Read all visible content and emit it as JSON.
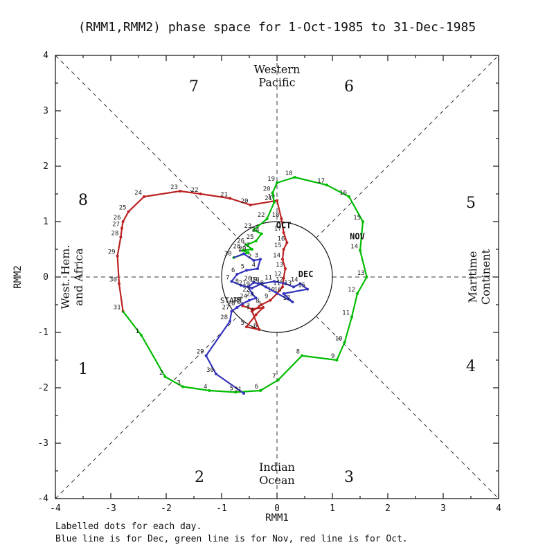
{
  "title": "(RMM1,RMM2) phase space for  1-Oct-1985 to 31-Dec-1985",
  "footer": {
    "line1": "Labelled dots for each day.",
    "line2": "Blue line is for Dec, green line is for Nov, red line is for Oct."
  },
  "chart_data": {
    "type": "line",
    "title": "(RMM1,RMM2) phase space for  1-Oct-1985 to 31-Dec-1985",
    "xlabel": "RMM1",
    "ylabel": "RMM2",
    "xlim": [
      -4,
      4
    ],
    "ylim": [
      -4,
      4
    ],
    "ticks": [
      -4,
      -3,
      -2,
      -1,
      0,
      1,
      2,
      3,
      4
    ],
    "grid": "dashed-octant-guides",
    "unit_circle_radius": 1,
    "octant_labels": [
      {
        "n": "7",
        "pos": [
          -1.5,
          3.45
        ]
      },
      {
        "n": "6",
        "pos": [
          1.3,
          3.45
        ]
      },
      {
        "n": "8",
        "pos": [
          -3.5,
          1.4
        ]
      },
      {
        "n": "5",
        "pos": [
          3.5,
          1.35
        ]
      },
      {
        "n": "1",
        "pos": [
          -3.5,
          -1.65
        ]
      },
      {
        "n": "4",
        "pos": [
          3.5,
          -1.6
        ]
      },
      {
        "n": "2",
        "pos": [
          -1.4,
          -3.6
        ]
      },
      {
        "n": "3",
        "pos": [
          1.3,
          -3.6
        ]
      }
    ],
    "region_labels": [
      {
        "lines": [
          "Western",
          "Pacific"
        ],
        "pos": [
          0,
          3.68
        ],
        "rotate": 0
      },
      {
        "lines": [
          "Indian",
          "Ocean"
        ],
        "pos": [
          0,
          -3.5
        ],
        "rotate": 0
      },
      {
        "lines": [
          "West. Hem.",
          "and Africa"
        ],
        "pos": [
          -3.75,
          0
        ],
        "rotate": -90
      },
      {
        "lines": [
          "Maritime",
          "Continent"
        ],
        "pos": [
          3.6,
          0
        ],
        "rotate": -90
      }
    ],
    "start_label": {
      "text": "START",
      "pos": [
        -0.82,
        -0.47
      ]
    },
    "series": [
      {
        "name": "Oct",
        "label": "OCT",
        "color": "#bb2222",
        "label_pos": [
          0.12,
          0.88
        ],
        "points": [
          [
            1,
            -0.62,
            -0.52
          ],
          [
            2,
            -0.45,
            -0.58
          ],
          [
            3,
            -0.25,
            -0.55
          ],
          [
            4,
            -0.38,
            -0.68
          ],
          [
            5,
            -0.55,
            -0.9
          ],
          [
            6,
            -0.32,
            -0.95
          ],
          [
            7,
            -0.45,
            -0.62
          ],
          [
            8,
            -0.28,
            -0.5
          ],
          [
            9,
            -0.12,
            -0.42
          ],
          [
            10,
            0.0,
            -0.3
          ],
          [
            11,
            0.1,
            -0.18
          ],
          [
            12,
            0.12,
            -0.02
          ],
          [
            13,
            0.15,
            0.15
          ],
          [
            14,
            0.1,
            0.32
          ],
          [
            15,
            0.12,
            0.5
          ],
          [
            16,
            0.18,
            0.62
          ],
          [
            17,
            0.12,
            0.8
          ],
          [
            18,
            0.08,
            1.05
          ],
          [
            19,
            0.0,
            1.38
          ],
          [
            20,
            -0.48,
            1.3
          ],
          [
            21,
            -0.85,
            1.42
          ],
          [
            22,
            -1.38,
            1.5
          ],
          [
            23,
            -1.75,
            1.55
          ],
          [
            24,
            -2.4,
            1.45
          ],
          [
            25,
            -2.68,
            1.18
          ],
          [
            26,
            -2.78,
            1.0
          ],
          [
            27,
            -2.8,
            0.88
          ],
          [
            28,
            -2.82,
            0.72
          ],
          [
            29,
            -2.88,
            0.38
          ],
          [
            30,
            -2.85,
            -0.12
          ],
          [
            31,
            -2.78,
            -0.62
          ]
        ]
      },
      {
        "name": "Nov",
        "label": "NOV",
        "color": "#00bb00",
        "label_pos": [
          1.45,
          0.68
        ],
        "points": [
          [
            1,
            -2.45,
            -1.05
          ],
          [
            2,
            -2.02,
            -1.8
          ],
          [
            3,
            -1.7,
            -1.98
          ],
          [
            4,
            -1.22,
            -2.05
          ],
          [
            5,
            -0.75,
            -2.08
          ],
          [
            6,
            -0.3,
            -2.05
          ],
          [
            7,
            0.02,
            -1.86
          ],
          [
            8,
            0.45,
            -1.42
          ],
          [
            9,
            1.08,
            -1.5
          ],
          [
            10,
            1.22,
            -1.18
          ],
          [
            11,
            1.35,
            -0.72
          ],
          [
            12,
            1.45,
            -0.3
          ],
          [
            13,
            1.62,
            0.0
          ],
          [
            14,
            1.5,
            0.48
          ],
          [
            15,
            1.55,
            1.0
          ],
          [
            16,
            1.3,
            1.45
          ],
          [
            17,
            0.9,
            1.66
          ],
          [
            18,
            0.32,
            1.8
          ],
          [
            19,
            0.0,
            1.7
          ],
          [
            20,
            -0.08,
            1.52
          ],
          [
            21,
            -0.05,
            1.35
          ],
          [
            22,
            -0.18,
            1.05
          ],
          [
            23,
            -0.42,
            0.85
          ],
          [
            24,
            -0.28,
            0.78
          ],
          [
            25,
            -0.38,
            0.65
          ],
          [
            26,
            -0.55,
            0.58
          ],
          [
            27,
            -0.45,
            0.5
          ],
          [
            28,
            -0.62,
            0.48
          ],
          [
            29,
            -0.52,
            0.44
          ],
          [
            30,
            -0.78,
            0.35
          ]
        ]
      },
      {
        "name": "Dec",
        "label": "DEC",
        "color": "#3333bb",
        "label_pos": [
          0.52,
          0.0
        ],
        "points": [
          [
            1,
            -0.6,
            0.42
          ],
          [
            2,
            -0.42,
            0.3
          ],
          [
            3,
            -0.3,
            0.32
          ],
          [
            4,
            -0.35,
            0.15
          ],
          [
            5,
            -0.55,
            0.12
          ],
          [
            6,
            -0.72,
            0.05
          ],
          [
            7,
            -0.82,
            -0.08
          ],
          [
            8,
            -0.65,
            -0.15
          ],
          [
            9,
            -0.45,
            -0.2
          ],
          [
            10,
            -0.28,
            -0.12
          ],
          [
            11,
            -0.05,
            -0.08
          ],
          [
            12,
            0.15,
            -0.12
          ],
          [
            13,
            0.3,
            -0.18
          ],
          [
            14,
            0.42,
            -0.12
          ],
          [
            15,
            0.55,
            -0.22
          ],
          [
            16,
            0.12,
            -0.3
          ],
          [
            17,
            0.28,
            -0.45
          ],
          [
            18,
            -0.2,
            -0.18
          ],
          [
            19,
            -0.32,
            -0.12
          ],
          [
            20,
            -0.42,
            -0.1
          ],
          [
            21,
            -0.52,
            -0.18
          ],
          [
            22,
            -0.45,
            -0.3
          ],
          [
            23,
            -0.38,
            -0.38
          ],
          [
            24,
            -0.5,
            -0.42
          ],
          [
            25,
            -0.62,
            -0.48
          ],
          [
            26,
            -0.72,
            -0.55
          ],
          [
            27,
            -0.82,
            -0.62
          ],
          [
            28,
            -0.85,
            -0.8
          ],
          [
            29,
            -1.28,
            -1.42
          ],
          [
            30,
            -1.1,
            -1.75
          ],
          [
            31,
            -0.6,
            -2.1
          ]
        ]
      }
    ]
  }
}
